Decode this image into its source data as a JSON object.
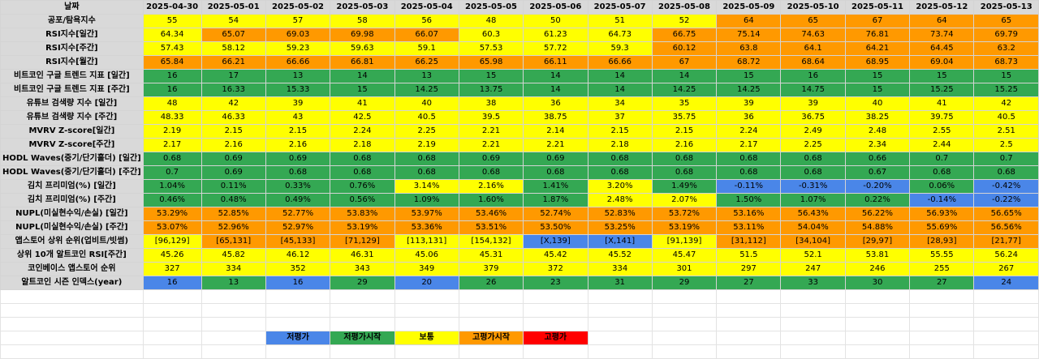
{
  "colors": {
    "B": "#4a86e8",
    "G": "#34a853",
    "Y": "#ffff00",
    "O": "#ff9900",
    "R": "#ff0000",
    "header_gray": "#d9d9d9"
  },
  "header": {
    "label": "날짜",
    "dates": [
      "2025-04-30",
      "2025-05-01",
      "2025-05-02",
      "2025-05-03",
      "2025-05-04",
      "2025-05-05",
      "2025-05-06",
      "2025-05-07",
      "2025-05-08",
      "2025-05-09",
      "2025-05-10",
      "2025-05-11",
      "2025-05-12",
      "2025-05-13"
    ]
  },
  "rows": [
    {
      "label": "공포/탐욕지수",
      "values": [
        "55",
        "54",
        "57",
        "58",
        "56",
        "48",
        "50",
        "51",
        "52",
        "64",
        "65",
        "67",
        "64",
        "65"
      ],
      "colors": [
        "Y",
        "Y",
        "Y",
        "Y",
        "Y",
        "Y",
        "Y",
        "Y",
        "Y",
        "O",
        "O",
        "O",
        "O",
        "O"
      ]
    },
    {
      "label": "RSI지수[일간]",
      "values": [
        "64.34",
        "65.07",
        "69.03",
        "69.98",
        "66.07",
        "60.3",
        "61.23",
        "64.73",
        "66.75",
        "75.14",
        "74.63",
        "76.81",
        "73.74",
        "69.79"
      ],
      "colors": [
        "Y",
        "O",
        "O",
        "O",
        "O",
        "Y",
        "Y",
        "Y",
        "O",
        "O",
        "O",
        "O",
        "O",
        "O"
      ]
    },
    {
      "label": "RSI지수[주간]",
      "values": [
        "57.43",
        "58.12",
        "59.23",
        "59.63",
        "59.1",
        "57.53",
        "57.72",
        "59.3",
        "60.12",
        "63.8",
        "64.1",
        "64.21",
        "64.45",
        "63.2"
      ],
      "colors": [
        "Y",
        "Y",
        "Y",
        "Y",
        "Y",
        "Y",
        "Y",
        "Y",
        "O",
        "O",
        "O",
        "O",
        "O",
        "O"
      ]
    },
    {
      "label": "RSI지수[월간]",
      "values": [
        "65.84",
        "66.21",
        "66.66",
        "66.81",
        "66.25",
        "65.98",
        "66.11",
        "66.66",
        "67",
        "68.72",
        "68.64",
        "68.95",
        "69.04",
        "68.73"
      ],
      "colors": [
        "O",
        "O",
        "O",
        "O",
        "O",
        "O",
        "O",
        "O",
        "O",
        "O",
        "O",
        "O",
        "O",
        "O"
      ]
    },
    {
      "label": "비트코인 구글 트렌드 지표 [일간]",
      "values": [
        "16",
        "17",
        "13",
        "14",
        "13",
        "15",
        "14",
        "14",
        "14",
        "15",
        "16",
        "15",
        "15",
        "15"
      ],
      "colors": [
        "G",
        "G",
        "G",
        "G",
        "G",
        "G",
        "G",
        "G",
        "G",
        "G",
        "G",
        "G",
        "G",
        "G"
      ]
    },
    {
      "label": "비트코인 구글 트렌드 지표 [주간]",
      "values": [
        "16",
        "16.33",
        "15.33",
        "15",
        "14.25",
        "13.75",
        "14",
        "14",
        "14.25",
        "14.25",
        "14.75",
        "15",
        "15.25",
        "15.25"
      ],
      "colors": [
        "G",
        "G",
        "G",
        "G",
        "G",
        "G",
        "G",
        "G",
        "G",
        "G",
        "G",
        "G",
        "G",
        "G"
      ]
    },
    {
      "label": "유튜브 검색량 지수 [일간]",
      "values": [
        "48",
        "42",
        "39",
        "41",
        "40",
        "38",
        "36",
        "34",
        "35",
        "39",
        "39",
        "40",
        "41",
        "42"
      ],
      "colors": [
        "Y",
        "Y",
        "Y",
        "Y",
        "Y",
        "Y",
        "Y",
        "Y",
        "Y",
        "Y",
        "Y",
        "Y",
        "Y",
        "Y"
      ]
    },
    {
      "label": "유튜브 검색량 지수 [주간]",
      "values": [
        "48.33",
        "46.33",
        "43",
        "42.5",
        "40.5",
        "39.5",
        "38.75",
        "37",
        "35.75",
        "36",
        "36.75",
        "38.25",
        "39.75",
        "40.5"
      ],
      "colors": [
        "Y",
        "Y",
        "Y",
        "Y",
        "Y",
        "Y",
        "Y",
        "Y",
        "Y",
        "Y",
        "Y",
        "Y",
        "Y",
        "Y"
      ]
    },
    {
      "label": "MVRV Z-score[일간]",
      "values": [
        "2.19",
        "2.15",
        "2.15",
        "2.24",
        "2.25",
        "2.21",
        "2.14",
        "2.15",
        "2.15",
        "2.24",
        "2.49",
        "2.48",
        "2.55",
        "2.51"
      ],
      "colors": [
        "Y",
        "Y",
        "Y",
        "Y",
        "Y",
        "Y",
        "Y",
        "Y",
        "Y",
        "Y",
        "Y",
        "Y",
        "Y",
        "Y"
      ]
    },
    {
      "label": "MVRV Z-score[주간]",
      "values": [
        "2.17",
        "2.16",
        "2.16",
        "2.18",
        "2.19",
        "2.21",
        "2.21",
        "2.18",
        "2.16",
        "2.17",
        "2.25",
        "2.34",
        "2.44",
        "2.5"
      ],
      "colors": [
        "Y",
        "Y",
        "Y",
        "Y",
        "Y",
        "Y",
        "Y",
        "Y",
        "Y",
        "Y",
        "Y",
        "Y",
        "Y",
        "Y"
      ]
    },
    {
      "label": "HODL Waves(중기/단기홀더) [일간]",
      "values": [
        "0.68",
        "0.69",
        "0.69",
        "0.68",
        "0.68",
        "0.69",
        "0.69",
        "0.68",
        "0.68",
        "0.68",
        "0.68",
        "0.66",
        "0.7",
        "0.7"
      ],
      "colors": [
        "G",
        "G",
        "G",
        "G",
        "G",
        "G",
        "G",
        "G",
        "G",
        "G",
        "G",
        "G",
        "G",
        "G"
      ]
    },
    {
      "label": "HODL Waves(중기/단기홀더) [주간]",
      "values": [
        "0.7",
        "0.69",
        "0.68",
        "0.68",
        "0.68",
        "0.68",
        "0.68",
        "0.68",
        "0.68",
        "0.68",
        "0.68",
        "0.67",
        "0.68",
        "0.68"
      ],
      "colors": [
        "G",
        "G",
        "G",
        "G",
        "G",
        "G",
        "G",
        "G",
        "G",
        "G",
        "G",
        "G",
        "G",
        "G"
      ]
    },
    {
      "label": "김치 프리미엄(%) [일간]",
      "values": [
        "1.04%",
        "0.11%",
        "0.33%",
        "0.76%",
        "3.14%",
        "2.16%",
        "1.41%",
        "3.20%",
        "1.49%",
        "-0.11%",
        "-0.31%",
        "-0.20%",
        "0.06%",
        "-0.42%"
      ],
      "colors": [
        "G",
        "G",
        "G",
        "G",
        "Y",
        "Y",
        "G",
        "Y",
        "G",
        "B",
        "B",
        "B",
        "G",
        "B"
      ]
    },
    {
      "label": "김치 프리미엄(%) [주간]",
      "values": [
        "0.46%",
        "0.48%",
        "0.49%",
        "0.56%",
        "1.09%",
        "1.60%",
        "1.87%",
        "2.48%",
        "2.07%",
        "1.50%",
        "1.07%",
        "0.22%",
        "-0.14%",
        "-0.22%"
      ],
      "colors": [
        "G",
        "G",
        "G",
        "G",
        "G",
        "G",
        "G",
        "Y",
        "Y",
        "G",
        "G",
        "G",
        "B",
        "B"
      ]
    },
    {
      "label": "NUPL(미실현수익/손실) [일간]",
      "values": [
        "53.29%",
        "52.85%",
        "52.77%",
        "53.83%",
        "53.97%",
        "53.46%",
        "52.74%",
        "52.83%",
        "53.72%",
        "53.16%",
        "56.43%",
        "56.22%",
        "56.93%",
        "56.65%"
      ],
      "colors": [
        "O",
        "O",
        "O",
        "O",
        "O",
        "O",
        "O",
        "O",
        "O",
        "O",
        "O",
        "O",
        "O",
        "O"
      ]
    },
    {
      "label": "NUPL(미실현수익/손실) [주간]",
      "values": [
        "53.07%",
        "52.96%",
        "52.97%",
        "53.19%",
        "53.36%",
        "53.51%",
        "53.50%",
        "53.25%",
        "53.19%",
        "53.11%",
        "54.04%",
        "54.88%",
        "55.69%",
        "56.56%"
      ],
      "colors": [
        "O",
        "O",
        "O",
        "O",
        "O",
        "O",
        "O",
        "O",
        "O",
        "O",
        "O",
        "O",
        "O",
        "O"
      ]
    },
    {
      "label": "앱스토어 상위 순위(업비트/빗썸)",
      "values": [
        "[96,129]",
        "[65,131]",
        "[45,133]",
        "[71,129]",
        "[113,131]",
        "[154,132]",
        "[X,139]",
        "[X,141]",
        "[91,139]",
        "[31,112]",
        "[34,104]",
        "[29,97]",
        "[28,93]",
        "[21,77]"
      ],
      "colors": [
        "Y",
        "O",
        "O",
        "O",
        "Y",
        "Y",
        "B",
        "B",
        "Y",
        "O",
        "O",
        "O",
        "O",
        "O"
      ]
    },
    {
      "label": "상위 10개 알트코인 RSI[주간]",
      "values": [
        "45.26",
        "45.82",
        "46.12",
        "46.31",
        "45.06",
        "45.31",
        "45.42",
        "45.52",
        "45.47",
        "51.5",
        "52.1",
        "53.81",
        "55.55",
        "56.24"
      ],
      "colors": [
        "Y",
        "Y",
        "Y",
        "Y",
        "Y",
        "Y",
        "Y",
        "Y",
        "Y",
        "Y",
        "Y",
        "Y",
        "Y",
        "Y"
      ]
    },
    {
      "label": "코인베이스 앱스토어 순위",
      "values": [
        "327",
        "334",
        "352",
        "343",
        "349",
        "379",
        "372",
        "334",
        "301",
        "297",
        "247",
        "246",
        "255",
        "267"
      ],
      "colors": [
        "Y",
        "Y",
        "Y",
        "Y",
        "Y",
        "Y",
        "Y",
        "Y",
        "Y",
        "Y",
        "Y",
        "Y",
        "Y",
        "Y"
      ]
    },
    {
      "label": "알트코인 시즌 인덱스(year)",
      "values": [
        "16",
        "13",
        "16",
        "29",
        "20",
        "26",
        "23",
        "31",
        "29",
        "27",
        "33",
        "30",
        "27",
        "24"
      ],
      "colors": [
        "B",
        "G",
        "B",
        "G",
        "B",
        "G",
        "G",
        "G",
        "G",
        "G",
        "G",
        "G",
        "G",
        "B"
      ]
    }
  ],
  "legend": [
    {
      "label": "저평가",
      "color": "B"
    },
    {
      "label": "저평가시작",
      "color": "G"
    },
    {
      "label": "보통",
      "color": "Y"
    },
    {
      "label": "고평가시작",
      "color": "O"
    },
    {
      "label": "고평가",
      "color": "R"
    }
  ]
}
